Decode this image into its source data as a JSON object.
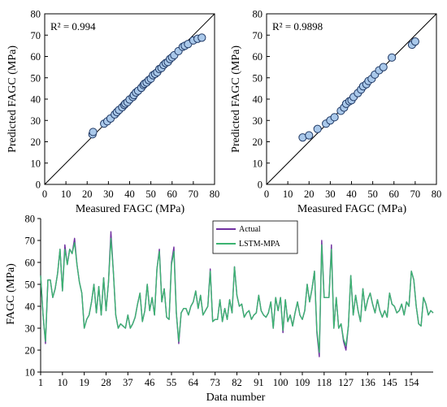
{
  "chart_data": [
    {
      "type": "scatter",
      "annotation": "R² = 0.994",
      "xlabel": "Measured FAGC (MPa)",
      "ylabel": "Predicted FAGC (MPa)",
      "xlim": [
        0,
        80
      ],
      "ylim": [
        0,
        80
      ],
      "xticks": [
        "0",
        "10",
        "20",
        "30",
        "40",
        "50",
        "60",
        "70",
        "80"
      ],
      "yticks": [
        "0",
        "10",
        "20",
        "30",
        "40",
        "50",
        "60",
        "70",
        "80"
      ],
      "reference_line": "y = x",
      "marker_color": "#a9c8ea",
      "points": [
        [
          22.5,
          23.5
        ],
        [
          22.8,
          24.6
        ],
        [
          28.0,
          28.5
        ],
        [
          29.5,
          29.6
        ],
        [
          31.0,
          30.9
        ],
        [
          33.0,
          32.8
        ],
        [
          34.0,
          33.9
        ],
        [
          35.0,
          34.9
        ],
        [
          36.5,
          36.2
        ],
        [
          37.5,
          37.3
        ],
        [
          38.0,
          37.9
        ],
        [
          39.0,
          38.6
        ],
        [
          40.0,
          39.8
        ],
        [
          41.5,
          41.0
        ],
        [
          42.0,
          41.9
        ],
        [
          43.0,
          43.1
        ],
        [
          44.0,
          43.9
        ],
        [
          45.5,
          45.3
        ],
        [
          46.5,
          46.6
        ],
        [
          47.0,
          47.2
        ],
        [
          48.0,
          47.8
        ],
        [
          49.0,
          48.9
        ],
        [
          50.0,
          49.6
        ],
        [
          51.0,
          51.2
        ],
        [
          52.0,
          51.8
        ],
        [
          53.0,
          52.6
        ],
        [
          54.0,
          54.1
        ],
        [
          55.0,
          54.6
        ],
        [
          56.0,
          56.0
        ],
        [
          57.0,
          56.9
        ],
        [
          58.0,
          57.4
        ],
        [
          59.0,
          58.8
        ],
        [
          60.0,
          59.6
        ],
        [
          61.0,
          60.6
        ],
        [
          63.0,
          62.5
        ],
        [
          65.0,
          64.5
        ],
        [
          66.0,
          65.0
        ],
        [
          67.5,
          65.8
        ],
        [
          70.0,
          67.5
        ],
        [
          72.0,
          68.3
        ],
        [
          74.0,
          68.8
        ]
      ]
    },
    {
      "type": "scatter",
      "annotation": "R² = 0.9898",
      "xlabel": "Measured FAGC (MPa)",
      "ylabel": "Predicted FAGC (MPa)",
      "xlim": [
        0,
        80
      ],
      "ylim": [
        0,
        80
      ],
      "xticks": [
        "0",
        "10",
        "20",
        "30",
        "40",
        "50",
        "60",
        "70",
        "80"
      ],
      "yticks": [
        "0",
        "10",
        "20",
        "30",
        "40",
        "50",
        "60",
        "70",
        "80"
      ],
      "reference_line": "y = x",
      "marker_color": "#a9c8ea",
      "points": [
        [
          17.0,
          22.0
        ],
        [
          20.0,
          23.0
        ],
        [
          24.0,
          26.0
        ],
        [
          28.0,
          28.5
        ],
        [
          30.0,
          30.0
        ],
        [
          32.0,
          31.5
        ],
        [
          35.0,
          34.5
        ],
        [
          36.5,
          36.0
        ],
        [
          37.5,
          37.8
        ],
        [
          39.0,
          39.0
        ],
        [
          40.0,
          39.5
        ],
        [
          41.0,
          41.0
        ],
        [
          43.0,
          42.8
        ],
        [
          44.5,
          44.5
        ],
        [
          45.5,
          46.0
        ],
        [
          47.0,
          47.0
        ],
        [
          48.0,
          48.5
        ],
        [
          49.5,
          49.5
        ],
        [
          51.0,
          51.5
        ],
        [
          53.0,
          53.5
        ],
        [
          55.0,
          55.0
        ],
        [
          59.0,
          59.5
        ],
        [
          68.5,
          65.5
        ],
        [
          70.0,
          67.0
        ]
      ]
    },
    {
      "type": "line",
      "xlabel": "Data number",
      "ylabel": "FAGC (MPa)",
      "xlim": [
        1,
        163
      ],
      "ylim": [
        10,
        80
      ],
      "xticks": [
        "1",
        "10",
        "19",
        "28",
        "37",
        "46",
        "55",
        "64",
        "73",
        "82",
        "91",
        "100",
        "109",
        "118",
        "127",
        "136",
        "145",
        "154"
      ],
      "yticks": [
        "10",
        "20",
        "30",
        "40",
        "50",
        "60",
        "70",
        "80"
      ],
      "legend_position": "top-center",
      "series": [
        {
          "name": "Actual",
          "color": "#7030a0",
          "values": [
            54,
            36,
            23,
            52,
            52,
            44,
            48,
            55,
            66,
            47,
            68,
            59,
            66,
            64,
            71,
            59,
            51,
            46,
            30,
            34,
            36,
            42,
            50,
            37,
            49,
            36,
            53,
            38,
            51,
            74,
            56,
            36,
            30,
            32,
            31,
            30,
            36,
            30,
            32,
            35,
            41,
            46,
            33,
            38,
            50,
            38,
            44,
            36,
            57,
            66,
            42,
            48,
            35,
            34,
            60,
            67,
            37,
            23,
            37,
            39,
            39,
            36,
            40,
            42,
            47,
            39,
            45,
            36,
            38,
            40,
            57,
            33,
            34,
            34,
            43,
            33,
            39,
            34,
            43,
            37,
            58,
            45,
            40,
            41,
            35,
            37,
            38,
            34,
            36,
            37,
            45,
            38,
            36,
            35,
            37,
            42,
            30,
            44,
            38,
            44,
            28,
            43,
            33,
            36,
            31,
            37,
            42,
            36,
            34,
            38,
            50,
            42,
            48,
            56,
            28,
            17,
            70,
            44,
            44,
            44,
            68,
            30,
            44,
            30,
            32,
            24,
            20,
            31,
            54,
            36,
            45,
            38,
            33,
            48,
            38,
            43,
            46,
            41,
            37,
            43,
            38,
            35,
            38,
            35,
            46,
            41,
            40,
            37,
            38,
            41,
            36,
            42,
            40,
            56,
            52,
            40,
            32,
            31,
            44,
            41,
            36,
            38,
            37
          ],
          "values_note": ""
        },
        {
          "name": "LSTM-MPA",
          "color": "#3cb371",
          "values": [
            54,
            36,
            24,
            52,
            52,
            44,
            48,
            55,
            66,
            47,
            66,
            59,
            66,
            64,
            69,
            59,
            51,
            46,
            30,
            34,
            36,
            42,
            50,
            37,
            49,
            36,
            53,
            38,
            51,
            71,
            56,
            36,
            30,
            32,
            31,
            30,
            36,
            30,
            32,
            35,
            41,
            46,
            33,
            38,
            50,
            38,
            44,
            36,
            57,
            65,
            42,
            48,
            35,
            34,
            59,
            65,
            37,
            24,
            37,
            39,
            39,
            36,
            40,
            42,
            47,
            39,
            45,
            36,
            38,
            40,
            56,
            33,
            34,
            34,
            43,
            33,
            39,
            34,
            43,
            37,
            58,
            45,
            40,
            41,
            35,
            37,
            38,
            34,
            36,
            37,
            45,
            38,
            36,
            35,
            37,
            42,
            30,
            44,
            38,
            44,
            29,
            43,
            33,
            36,
            31,
            37,
            42,
            36,
            34,
            38,
            50,
            42,
            48,
            56,
            29,
            19,
            68,
            44,
            44,
            44,
            66,
            30,
            44,
            30,
            32,
            25,
            22,
            31,
            54,
            36,
            45,
            38,
            33,
            48,
            38,
            43,
            46,
            41,
            37,
            43,
            38,
            35,
            38,
            35,
            46,
            41,
            40,
            37,
            38,
            41,
            36,
            42,
            40,
            56,
            52,
            40,
            32,
            31,
            44,
            41,
            36,
            38,
            37
          ]
        }
      ]
    }
  ]
}
